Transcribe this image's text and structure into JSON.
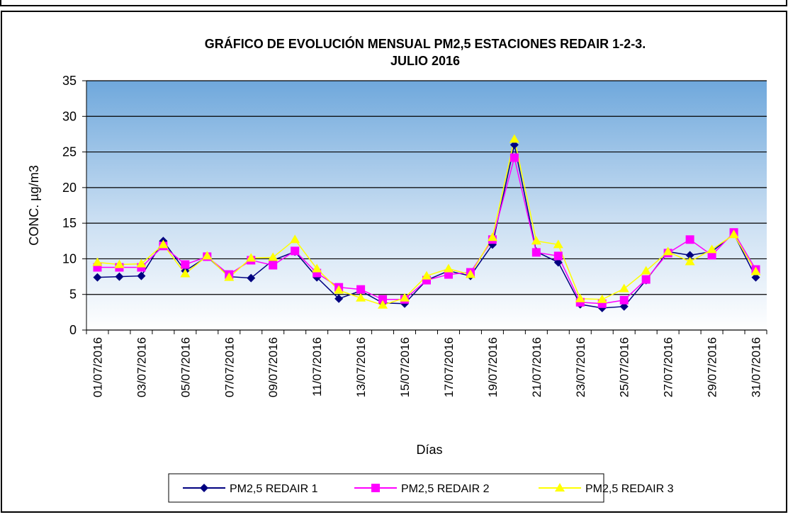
{
  "chart_data": {
    "type": "line",
    "title_lines": [
      "GRÁFICO DE EVOLUCIÓN MENSUAL PM2,5 ESTACIONES REDAIR 1-2-3.",
      "JULIO 2016"
    ],
    "x_label": "Días",
    "y_label": "CONC.  µg/m3",
    "categories": [
      "01/07/2016",
      null,
      "03/07/2016",
      null,
      "05/07/2016",
      null,
      "07/07/2016",
      null,
      "09/07/2016",
      null,
      "11/07/2016",
      null,
      "13/07/2016",
      null,
      "15/07/2016",
      null,
      "17/07/2016",
      null,
      "19/07/2016",
      null,
      "21/07/2016",
      null,
      "23/07/2016",
      null,
      "25/07/2016",
      null,
      "27/07/2016",
      null,
      "29/07/2016",
      null,
      "31/07/2016"
    ],
    "series": [
      {
        "name": "PM2,5 REDAIR 1",
        "color": "#000080",
        "marker": "diamond",
        "values": [
          7.4,
          7.5,
          7.6,
          12.5,
          8.3,
          10.3,
          7.5,
          7.3,
          9.8,
          11.0,
          7.4,
          4.4,
          5.5,
          3.8,
          3.7,
          7.0,
          8.3,
          7.6,
          12.0,
          26.0,
          11.0,
          9.5,
          3.6,
          3.1,
          3.3,
          7.0,
          11.0,
          10.5,
          11.0,
          13.5,
          7.4
        ]
      },
      {
        "name": "PM2,5 REDAIR 2",
        "color": "#ff00ff",
        "marker": "square",
        "values": [
          8.8,
          8.8,
          8.8,
          11.8,
          9.2,
          10.3,
          7.8,
          9.8,
          9.1,
          11.1,
          8.0,
          6.0,
          5.7,
          4.3,
          4.3,
          7.0,
          7.8,
          8.1,
          12.7,
          24.2,
          10.9,
          10.4,
          3.9,
          3.7,
          4.2,
          7.1,
          10.8,
          12.7,
          10.5,
          13.7,
          8.5
        ]
      },
      {
        "name": "PM2,5 REDAIR 3",
        "color": "#ffff00",
        "marker": "triangle",
        "values": [
          9.5,
          9.2,
          9.3,
          12.0,
          7.9,
          10.4,
          7.4,
          10.1,
          10.2,
          12.7,
          8.6,
          5.6,
          4.5,
          3.5,
          4.5,
          7.6,
          8.6,
          7.8,
          13.0,
          26.8,
          12.5,
          12.0,
          4.4,
          4.3,
          5.8,
          8.3,
          11.0,
          9.6,
          11.3,
          13.4,
          8.2
        ]
      }
    ],
    "ylim": [
      0,
      35
    ],
    "yticks": [
      0,
      5,
      10,
      15,
      20,
      25,
      30,
      35
    ],
    "grid": true,
    "legend": "bottom"
  }
}
